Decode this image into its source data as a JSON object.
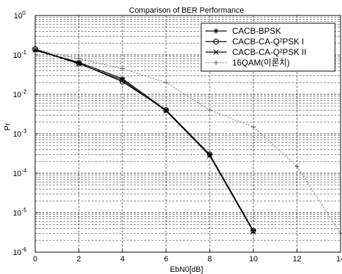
{
  "chart_data": {
    "type": "line",
    "title": "Comparison of BER Performance",
    "xlabel": "EbN0[dB]",
    "ylabel": "Pr",
    "x_scale": "linear",
    "y_scale": "log",
    "xlim": [
      0,
      14
    ],
    "ylim": [
      1e-06,
      1
    ],
    "xticks": [
      0,
      2,
      4,
      6,
      8,
      10,
      12,
      14
    ],
    "xtick_labels": [
      "0",
      "2",
      "4",
      "6",
      "8",
      "10",
      "12",
      "14"
    ],
    "yticks": [
      1e-06,
      1e-05,
      0.0001,
      0.001,
      0.01,
      0.1,
      1
    ],
    "ytick_labels": [
      {
        "base": "10",
        "exp": "-6"
      },
      {
        "base": "10",
        "exp": "-5"
      },
      {
        "base": "10",
        "exp": "-4"
      },
      {
        "base": "10",
        "exp": "-3"
      },
      {
        "base": "10",
        "exp": "-2"
      },
      {
        "base": "10",
        "exp": "-1"
      },
      {
        "base": "10",
        "exp": "0"
      }
    ],
    "grid": true,
    "legend_position": "top-right",
    "series": [
      {
        "name": "CACB-BPSK",
        "marker": "star",
        "color": "#000000",
        "x": [
          0,
          2,
          4,
          6,
          8,
          10
        ],
        "y": [
          0.13,
          0.065,
          0.025,
          0.004,
          0.0003,
          3.5e-06
        ]
      },
      {
        "name": "CACB-CA-Q²PSK I",
        "marker": "circle",
        "color": "#000000",
        "x": [
          0,
          2,
          4,
          6,
          8,
          10
        ],
        "y": [
          0.14,
          0.062,
          0.021,
          0.004,
          0.0003,
          3.5e-06
        ]
      },
      {
        "name": "CACB-CA-Q²PSK II",
        "marker": "x",
        "color": "#000000",
        "x": [
          0,
          2,
          4,
          6,
          8,
          10
        ],
        "y": [
          0.135,
          0.06,
          0.023,
          0.0038,
          0.00028,
          3.3e-06
        ]
      },
      {
        "name": "16QAM(이론치)",
        "marker": "plus",
        "color": "#555555",
        "x": [
          0,
          2,
          4,
          6,
          8,
          10,
          12,
          14
        ],
        "y": [
          0.14,
          0.08,
          0.045,
          0.02,
          0.004,
          0.0015,
          0.00015,
          3e-06
        ]
      }
    ]
  }
}
